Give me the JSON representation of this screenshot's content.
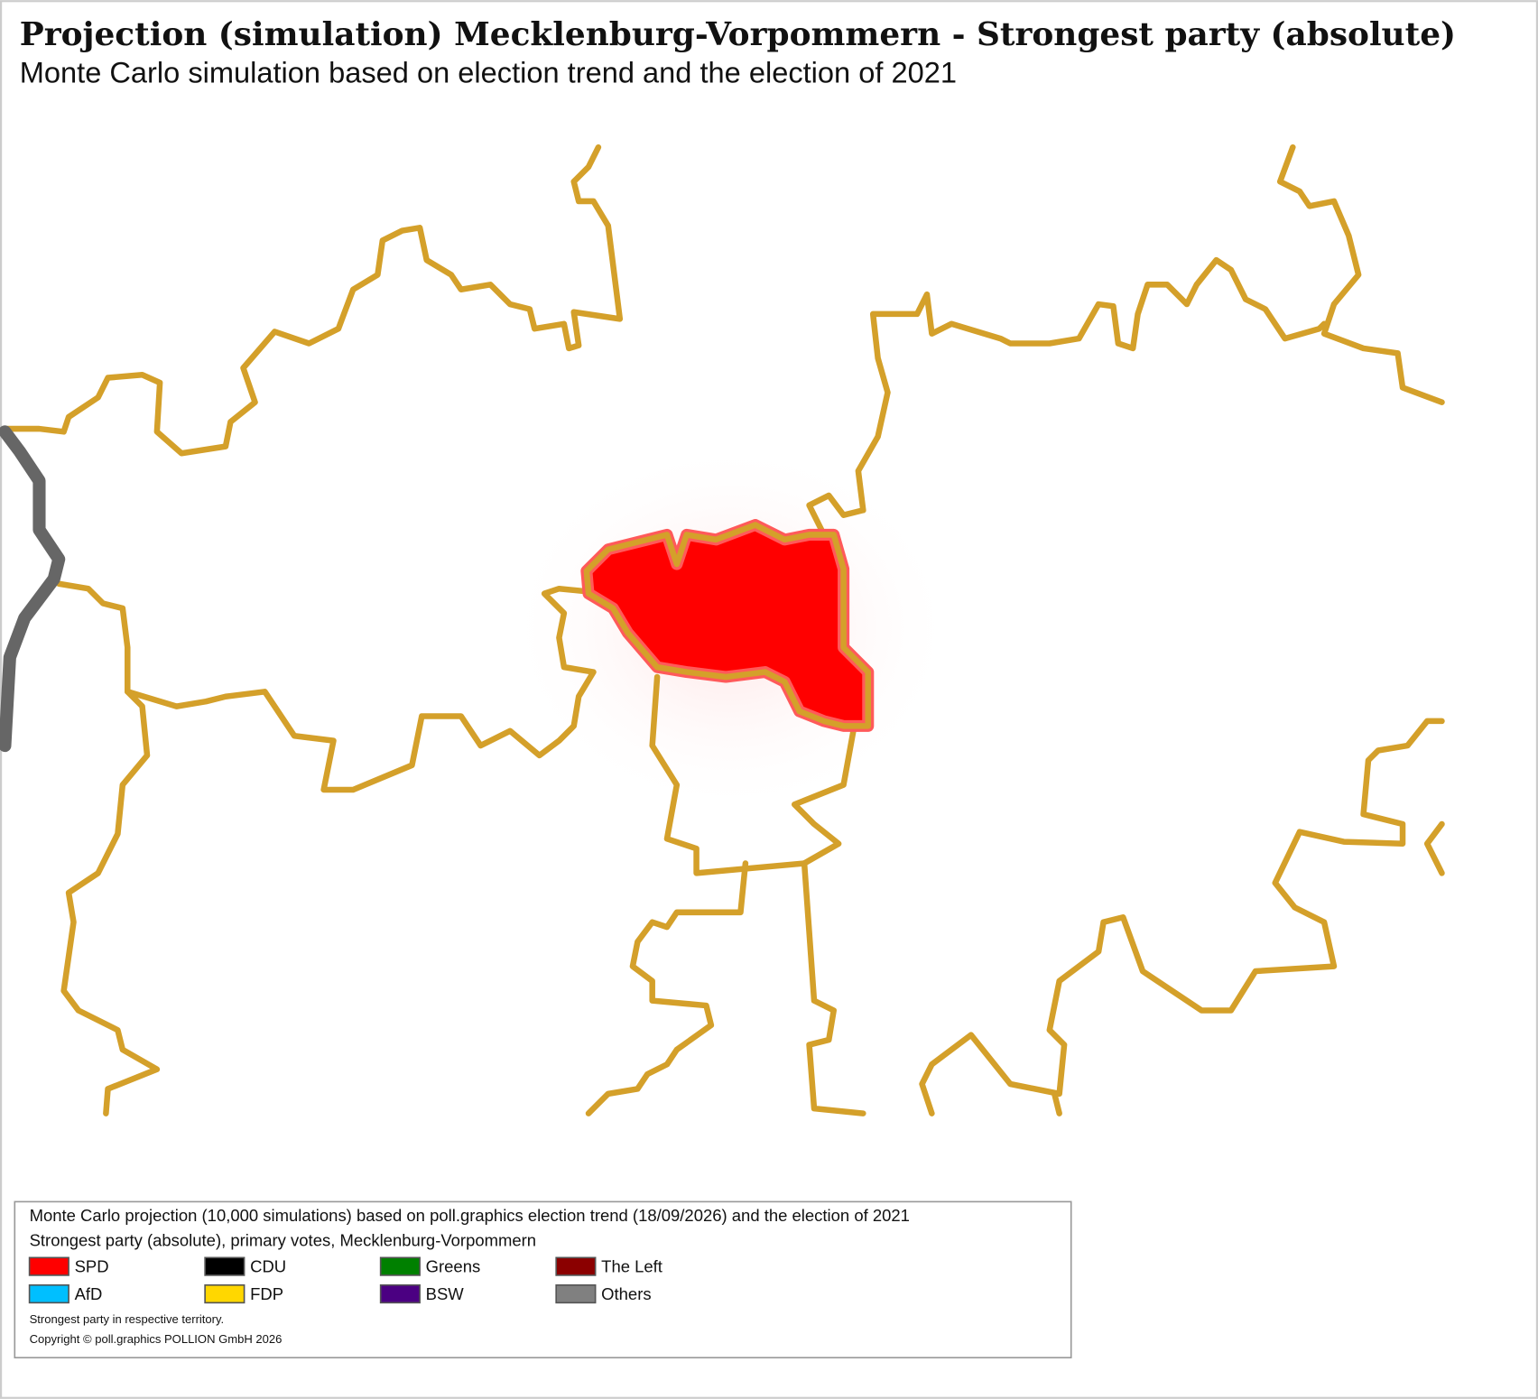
{
  "header": {
    "title": "Projection (simulation) Mecklenburg-Vorpommern - Strongest party (absolute)",
    "subtitle": "Monte Carlo simulation based on election trend and the election of 2021"
  },
  "legend": {
    "line1": "Monte Carlo projection (10,000 simulations) based on poll.graphics election trend (18/09/2026) and the election of 2021",
    "line2": "Strongest party (absolute), primary votes, Mecklenburg-Vorpommern",
    "items": [
      {
        "label": "SPD",
        "color": "#ff0000"
      },
      {
        "label": "CDU",
        "color": "#000000"
      },
      {
        "label": "Greens",
        "color": "#008000"
      },
      {
        "label": "The Left",
        "color": "#8b0000"
      },
      {
        "label": "AfD",
        "color": "#00bfff"
      },
      {
        "label": "FDP",
        "color": "#ffd700"
      },
      {
        "label": "BSW",
        "color": "#4b0082"
      },
      {
        "label": "Others",
        "color": "#808080"
      }
    ],
    "note": "Strongest party in respective territory.",
    "copyright": "Copyright © poll.graphics POLLION GmbH 2026"
  }
}
